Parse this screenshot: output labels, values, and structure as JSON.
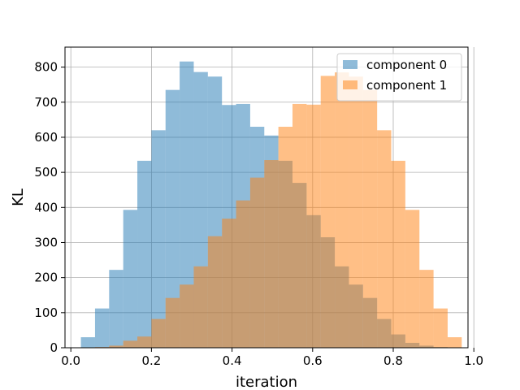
{
  "chart_data": {
    "type": "histogram",
    "title": "",
    "xlabel": "iteration",
    "ylabel": "KL",
    "xlim": [
      -0.0145,
      0.9855
    ],
    "ylim": [
      0,
      857
    ],
    "xticks": [
      0.0,
      0.2,
      0.4,
      0.6,
      0.8,
      1.0
    ],
    "xtick_labels": [
      "0.0",
      "0.2",
      "0.4",
      "0.6",
      "0.8",
      "1.0"
    ],
    "yticks": [
      0,
      100,
      200,
      300,
      400,
      500,
      600,
      700,
      800
    ],
    "ytick_labels": [
      "0",
      "100",
      "200",
      "300",
      "400",
      "500",
      "600",
      "700",
      "800"
    ],
    "grid": true,
    "legend_position": "top-right",
    "series": [
      {
        "name": "component 0",
        "color": "#1f77b4",
        "alpha": 0.5,
        "bin_edges": [
          0.025,
          0.06,
          0.095,
          0.13,
          0.165,
          0.2,
          0.235,
          0.27,
          0.305,
          0.34,
          0.375,
          0.41,
          0.445,
          0.48,
          0.515,
          0.55,
          0.585,
          0.62,
          0.655,
          0.69,
          0.725,
          0.76,
          0.795,
          0.83,
          0.865,
          0.9,
          0.935,
          0.97
        ],
        "counts": [
          30,
          112,
          222,
          393,
          533,
          620,
          735,
          816,
          786,
          773,
          692,
          695,
          630,
          605,
          533,
          470,
          378,
          315,
          232,
          180,
          142,
          82,
          38,
          14,
          6,
          2,
          0
        ]
      },
      {
        "name": "component 1",
        "color": "#ff7f0e",
        "alpha": 0.5,
        "bin_edges": [
          0.025,
          0.06,
          0.095,
          0.13,
          0.165,
          0.2,
          0.235,
          0.27,
          0.305,
          0.34,
          0.375,
          0.41,
          0.445,
          0.48,
          0.515,
          0.55,
          0.585,
          0.62,
          0.655,
          0.69,
          0.725,
          0.76,
          0.795,
          0.83,
          0.865,
          0.9,
          0.935,
          0.97
        ],
        "counts": [
          0,
          2,
          6,
          20,
          32,
          82,
          142,
          180,
          232,
          318,
          368,
          420,
          485,
          535,
          630,
          695,
          693,
          775,
          785,
          773,
          735,
          620,
          533,
          393,
          222,
          112,
          30
        ]
      }
    ]
  }
}
